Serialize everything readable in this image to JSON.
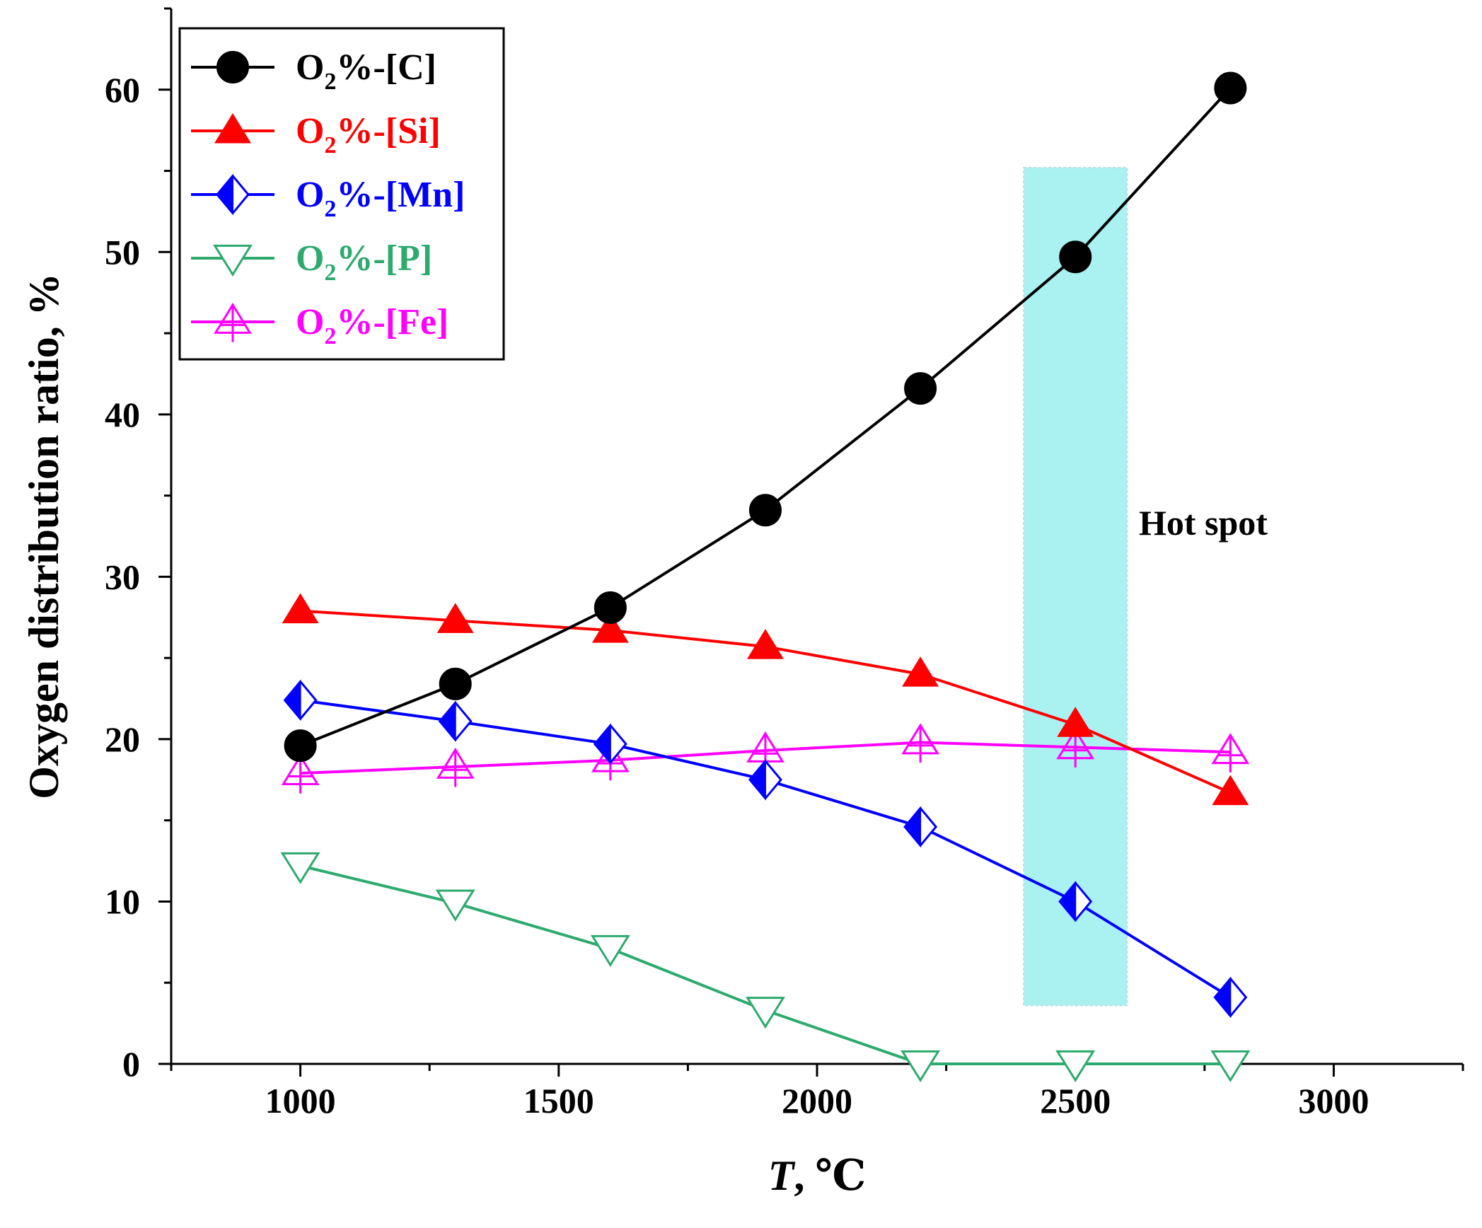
{
  "chart_data": {
    "type": "line",
    "xlabel_var": "T",
    "xlabel_unit": ", ℃",
    "ylabel": "Oxygen distribution ratio, %",
    "xlim": [
      750,
      3250
    ],
    "ylim": [
      0,
      65
    ],
    "xticks": [
      1000,
      1500,
      2000,
      2500,
      3000
    ],
    "xtick_labels": [
      "1000",
      "1500",
      "2000",
      "2500",
      "3000"
    ],
    "yticks": [
      0,
      10,
      20,
      30,
      40,
      50,
      60
    ],
    "ytick_labels": [
      "0",
      "10",
      "20",
      "30",
      "40",
      "50",
      "60"
    ],
    "x": [
      1000,
      1300,
      1600,
      1900,
      2200,
      2500,
      2800
    ],
    "series": [
      {
        "name_prefix": "O",
        "name_sub": "2",
        "name_suffix": "%-[C]",
        "color": "#000000",
        "marker": "filled-circle",
        "values": [
          19.6,
          23.4,
          28.1,
          34.1,
          41.6,
          49.7,
          60.1
        ]
      },
      {
        "name_prefix": "O",
        "name_sub": "2",
        "name_suffix": "%-[Si]",
        "color": "#ff0000",
        "marker": "filled-triangle-up",
        "values": [
          27.9,
          27.3,
          26.7,
          25.7,
          24.0,
          20.9,
          16.7
        ]
      },
      {
        "name_prefix": "O",
        "name_sub": "2",
        "name_suffix": "%-[Mn]",
        "color": "#0000ff",
        "marker": "half-filled-diamond",
        "values": [
          22.4,
          21.1,
          19.7,
          17.5,
          14.6,
          10.0,
          4.1
        ]
      },
      {
        "name_prefix": "O",
        "name_sub": "2",
        "name_suffix": "%-[P]",
        "color": "#2daa6e",
        "marker": "open-triangle-down",
        "values": [
          12.2,
          9.9,
          7.1,
          3.3,
          0,
          0,
          0
        ]
      },
      {
        "name_prefix": "O",
        "name_sub": "2",
        "name_suffix": "%-[Fe]",
        "color": "#ff00ff",
        "marker": "open-triangle-up-cross",
        "values": [
          17.9,
          18.3,
          18.7,
          19.3,
          19.8,
          19.5,
          19.2
        ]
      }
    ],
    "highlight_region": {
      "x_from": 2400,
      "x_to": 2600,
      "y_from": 3.6,
      "y_to": 55.2,
      "color": "#aaf2f2",
      "label": "Hot spot"
    },
    "legend_position": "top-left"
  }
}
